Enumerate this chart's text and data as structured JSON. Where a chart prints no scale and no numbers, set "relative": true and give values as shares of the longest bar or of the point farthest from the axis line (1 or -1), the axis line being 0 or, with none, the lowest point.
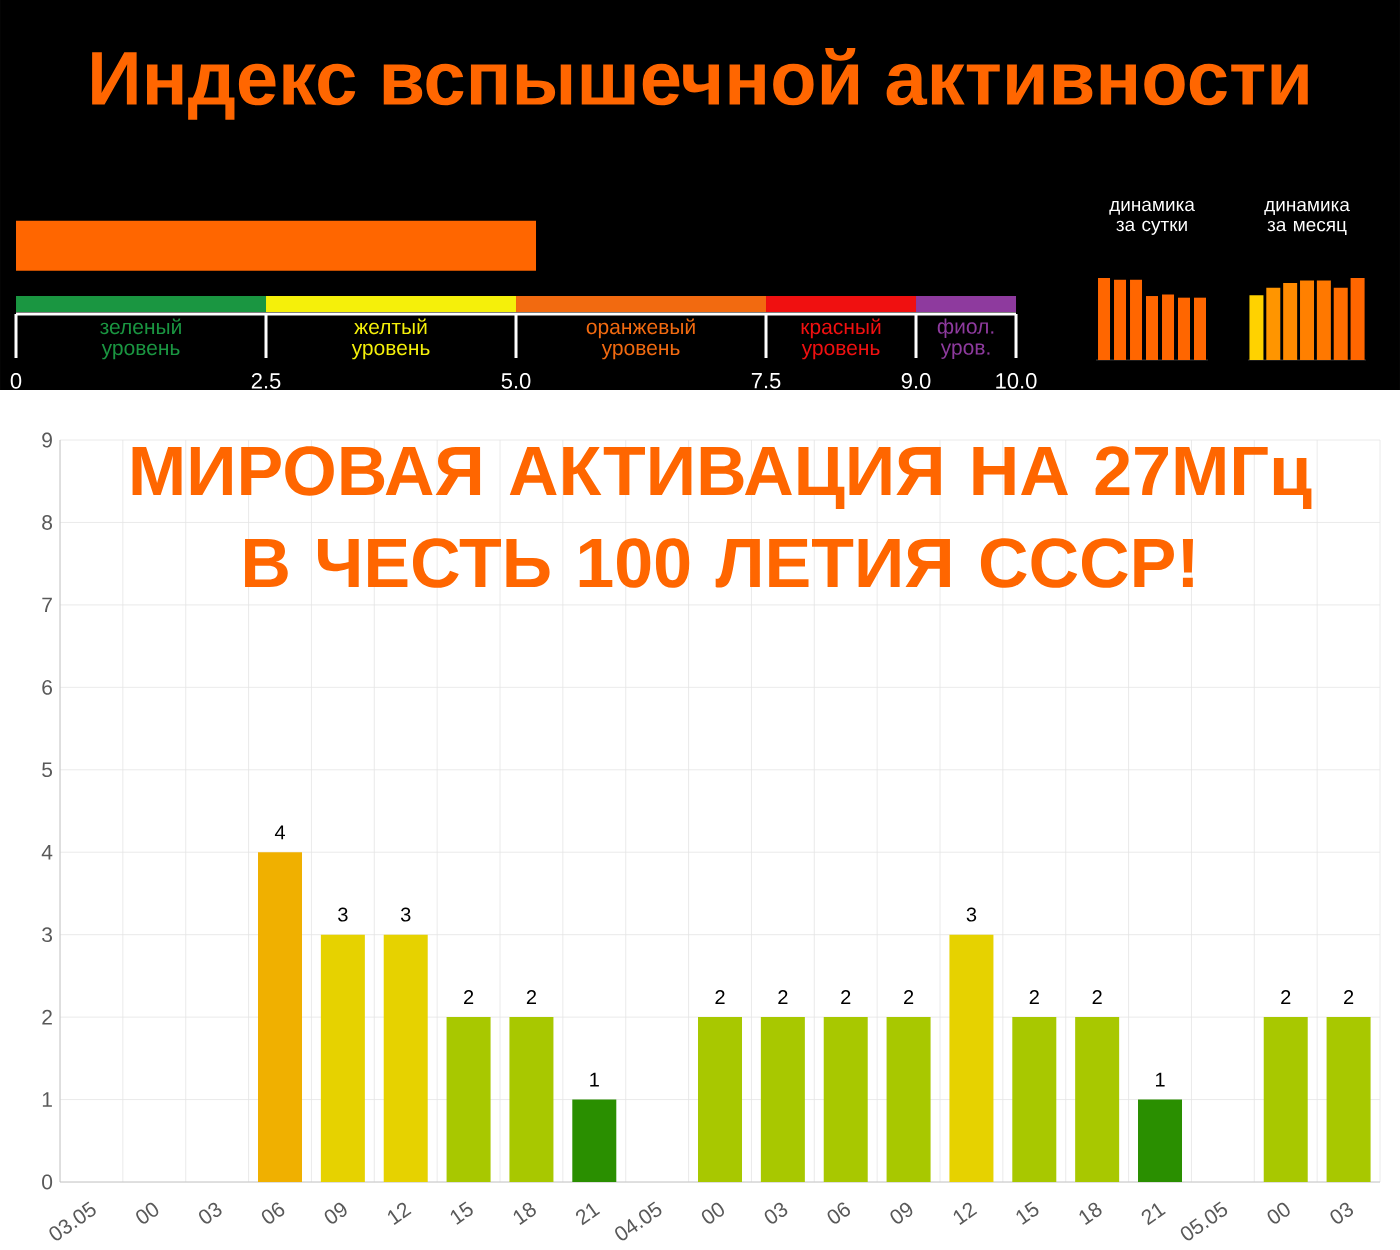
{
  "chart_data": [
    {
      "type": "bar",
      "title": "Индекс вспышечной активности",
      "orientation": "horizontal",
      "categories": [
        null
      ],
      "values": [
        5.2
      ],
      "color": "#ff6600",
      "xlim": [
        0,
        10
      ],
      "xticks": [
        0,
        2.5,
        {
          "value": 5,
          "label": "5.0"
        },
        7.5,
        {
          "value": 9,
          "label": "9.0"
        },
        {
          "value": 10,
          "label": "10.0"
        }
      ],
      "annotations": [
        "зеленый уровень",
        "желтый уровень",
        "оранжевый уровень",
        "красный уровень",
        "фиол. уров."
      ]
    },
    {
      "type": "bar",
      "title": "динамика за сутки",
      "relative": true,
      "categories": [
        null,
        null,
        null,
        null,
        null,
        null,
        null
      ],
      "values": [
        1,
        0.98,
        0.98,
        0.78,
        0.8,
        0.76,
        0.76
      ],
      "color": "#ff6600"
    },
    {
      "type": "bar",
      "title": "динамика за месяц",
      "relative": true,
      "categories": [
        null,
        null,
        null,
        null,
        null,
        null,
        null
      ],
      "values": [
        0.79,
        0.88,
        0.94,
        0.97,
        0.97,
        0.88,
        1
      ],
      "colors": [
        "#ffd200",
        "#ff9500",
        "#ff8a00",
        "#ff8000",
        "#ff7800",
        "#ff6e00",
        "#ff6600"
      ]
    },
    {
      "type": "bar",
      "title": "МИРОВАЯ АКТИВАЦИЯ НА 27МГц В ЧЕСТЬ 100 ЛЕТИЯ СССР!",
      "categories": [
        "03.05",
        "00",
        "03",
        "06",
        "09",
        "12",
        "15",
        "18",
        "21",
        "04.05",
        "00",
        "03",
        "06",
        "09",
        "12",
        "15",
        "18",
        "21",
        "05.05",
        "00",
        "03"
      ],
      "values": [
        0,
        0,
        0,
        4,
        3,
        3,
        2,
        2,
        1,
        0,
        2,
        2,
        2,
        2,
        3,
        2,
        2,
        1,
        0,
        2,
        2
      ],
      "value_labels": [
        null,
        null,
        null,
        "4",
        "3",
        "3",
        "2",
        "2",
        "1",
        null,
        "2",
        "2",
        "2",
        "2",
        "3",
        "2",
        "2",
        "1",
        null,
        "2",
        "2"
      ],
      "colors": [
        "#008000",
        "#008000",
        "#008000",
        "#f0b000",
        "#e6d200",
        "#e6d200",
        "#a8c800",
        "#a8c800",
        "#2a8f00",
        "#008000",
        "#a8c800",
        "#a8c800",
        "#a8c800",
        "#a8c800",
        "#e6d200",
        "#a8c800",
        "#a8c800",
        "#2a8f00",
        "#008000",
        "#a8c800",
        "#a8c800"
      ],
      "ylim": [
        0,
        9
      ],
      "yticks": [
        0,
        1,
        2,
        3,
        4,
        5,
        6,
        7,
        8,
        9
      ],
      "grid": true
    }
  ]
}
